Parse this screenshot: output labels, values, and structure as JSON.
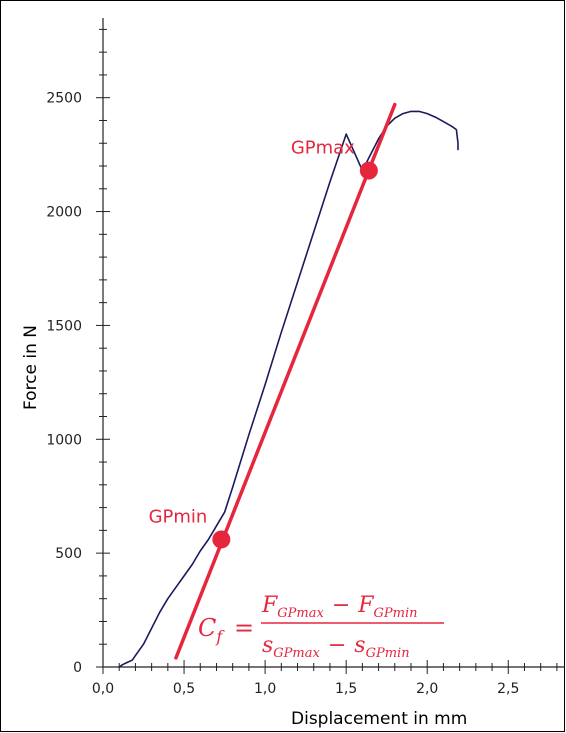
{
  "chart_data": {
    "type": "line",
    "title": "",
    "xlabel": "Displacement in mm",
    "ylabel": "Force in N",
    "xlim": [
      0.0,
      2.85
    ],
    "ylim": [
      0,
      2850
    ],
    "x_ticks": [
      0.0,
      0.5,
      1.0,
      1.5,
      2.0,
      2.5
    ],
    "x_tick_labels": [
      "0,0",
      "0,5",
      "1,0",
      "1,5",
      "2,0",
      "2,5"
    ],
    "y_ticks": [
      0,
      500,
      1000,
      1500,
      2000,
      2500
    ],
    "y_tick_labels": [
      "0",
      "500",
      "1000",
      "1500",
      "2000",
      "2500"
    ],
    "grid": false,
    "series": [
      {
        "x": [
          0.1,
          0.12,
          0.15,
          0.18,
          0.2,
          0.25,
          0.3,
          0.35,
          0.4,
          0.45,
          0.5,
          0.55,
          0.6,
          0.65,
          0.7,
          0.75,
          0.8,
          0.9,
          1.0,
          1.1,
          1.2,
          1.3,
          1.4,
          1.5,
          1.6,
          1.65,
          1.7,
          1.75,
          1.8,
          1.85,
          1.9,
          1.95,
          2.0,
          2.05,
          2.1,
          2.15,
          2.18,
          2.19,
          2.19
        ],
        "y": [
          0,
          10,
          20,
          30,
          50,
          100,
          170,
          240,
          300,
          350,
          400,
          450,
          510,
          560,
          620,
          680,
          790,
          1020,
          1240,
          1470,
          1690,
          1910,
          2130,
          2340,
          2180,
          2250,
          2320,
          2375,
          2410,
          2430,
          2440,
          2440,
          2430,
          2415,
          2395,
          2375,
          2360,
          2300,
          2270
        ]
      }
    ],
    "fit_line": {
      "x": [
        0.45,
        1.8
      ],
      "y": [
        40,
        2470
      ]
    },
    "points": [
      {
        "label": "GPmin",
        "x": 0.73,
        "y": 560
      },
      {
        "label": "GPmax",
        "x": 1.64,
        "y": 2180
      }
    ],
    "formula": {
      "lhs": "C",
      "lhs_sub": "f",
      "eq": "=",
      "num_a": "F",
      "num_a_sub": "GPmax",
      "num_b": "F",
      "num_b_sub": "GPmin",
      "den_a": "s",
      "den_a_sub": "GPmax",
      "den_b": "s",
      "den_b_sub": "GPmin",
      "minus": "−"
    },
    "colors": {
      "curve": "#1a1a5e",
      "fit": "#e5263d",
      "axis": "#222222"
    }
  }
}
